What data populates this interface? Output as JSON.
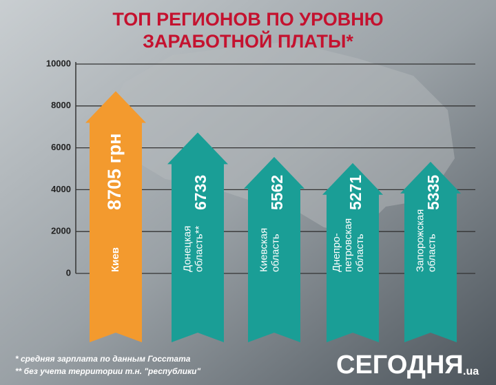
{
  "chart_data": {
    "type": "arrow-bar",
    "title": [
      "ТОП РЕГИОНОВ ПО УРОВНЮ",
      "ЗАРАБОТНОЙ ПЛАТЫ*"
    ],
    "categories": [
      "Киев",
      "Донецкая\nобласть**",
      "Киевская\nобласть",
      "Днепро-\nпетровская\nобласть",
      "Запорожская\nобласть"
    ],
    "values": [
      8705,
      6733,
      5562,
      5271,
      5335
    ],
    "value_labels": [
      "8705 грн",
      "6733",
      "5562",
      "5271",
      "5335"
    ],
    "colors": [
      "#f39a2e",
      "#1a9e96",
      "#1a9e96",
      "#1a9e96",
      "#1a9e96"
    ],
    "ylim": [
      0,
      10000
    ],
    "yticks": [
      0,
      2000,
      4000,
      6000,
      8000,
      10000
    ],
    "grid": true,
    "footnotes": [
      "* средняя зарплата по данным Госстата",
      "** без учета территории т.н. \"республики\""
    ],
    "logo": "СЕГОДНЯ",
    "logo_suffix": ".ua"
  }
}
